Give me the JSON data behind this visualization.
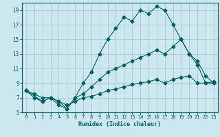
{
  "xlabel": "Humidex (Indice chaleur)",
  "bg_color": "#cce8ee",
  "grid_color": "#aaccd4",
  "line_color": "#006060",
  "line1_x": [
    0,
    1,
    2,
    3,
    4,
    5,
    6,
    7,
    8,
    9,
    10,
    11,
    12,
    13,
    14,
    15,
    16,
    17,
    18,
    19,
    20,
    21,
    22,
    23
  ],
  "line1_y": [
    8,
    7,
    6.5,
    7,
    6.5,
    5.5,
    7,
    9,
    10.5,
    13,
    15,
    16.5,
    18,
    17.5,
    19,
    18.5,
    19.5,
    19,
    17,
    15,
    13,
    12,
    10,
    9
  ],
  "line2_x": [
    0,
    2,
    3,
    4,
    5,
    6,
    7,
    8,
    9,
    10,
    11,
    12,
    13,
    14,
    15,
    16,
    17,
    18,
    19,
    20,
    21,
    22,
    23
  ],
  "line2_y": [
    8,
    6.5,
    7,
    6,
    5.5,
    7,
    7.5,
    8.5,
    9.5,
    10.5,
    11,
    11.5,
    12,
    12.5,
    13,
    13.5,
    13,
    14,
    15,
    13,
    11.5,
    9,
    9
  ],
  "line3_x": [
    0,
    1,
    2,
    3,
    4,
    5,
    6,
    7,
    8,
    9,
    10,
    11,
    12,
    13,
    14,
    15,
    16,
    17,
    18,
    19,
    20,
    21,
    22,
    23
  ],
  "line3_y": [
    8,
    7.5,
    7,
    7,
    6.5,
    6,
    6.5,
    7,
    7.2,
    7.5,
    8,
    8.2,
    8.5,
    8.8,
    9,
    9.2,
    9.5,
    9,
    9.5,
    9.8,
    10,
    9,
    9,
    9.2
  ],
  "xlim": [
    -0.5,
    23.5
  ],
  "ylim": [
    5,
    20
  ],
  "yticks": [
    5,
    7,
    9,
    11,
    13,
    15,
    17,
    19
  ],
  "xticks": [
    0,
    1,
    2,
    3,
    4,
    5,
    6,
    7,
    8,
    9,
    10,
    11,
    12,
    13,
    14,
    15,
    16,
    17,
    18,
    19,
    20,
    21,
    22,
    23
  ]
}
